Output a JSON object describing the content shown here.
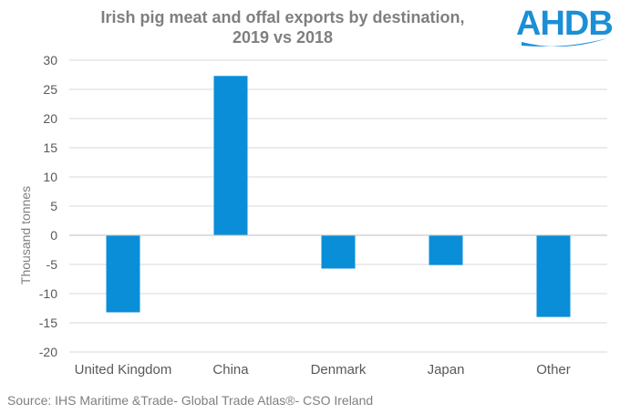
{
  "chart_data": {
    "type": "bar",
    "title_lines": [
      "Irish pig meat and offal exports by destination,",
      "2019 vs 2018"
    ],
    "categories": [
      "United Kingdom",
      "China",
      "Denmark",
      "Japan",
      "Other"
    ],
    "values": [
      -13.2,
      27.3,
      -5.7,
      -5.1,
      -14.0
    ],
    "xlabel": "",
    "ylabel": "Thousand tonnes",
    "ylim": [
      -20,
      30
    ],
    "yticks": [
      30,
      25,
      20,
      15,
      10,
      5,
      0,
      -5,
      -10,
      -15,
      -20
    ],
    "grid": true,
    "legend": "none",
    "bar_color": "#0a8ed8",
    "grid_color": "#d9d9d9",
    "axis_color": "#bfbfbf"
  },
  "logo": {
    "text": "AHDB",
    "color": "#1b8fd6"
  },
  "source": "Source: IHS Maritime &Trade- Global Trade Atlas®- CSO Ireland"
}
